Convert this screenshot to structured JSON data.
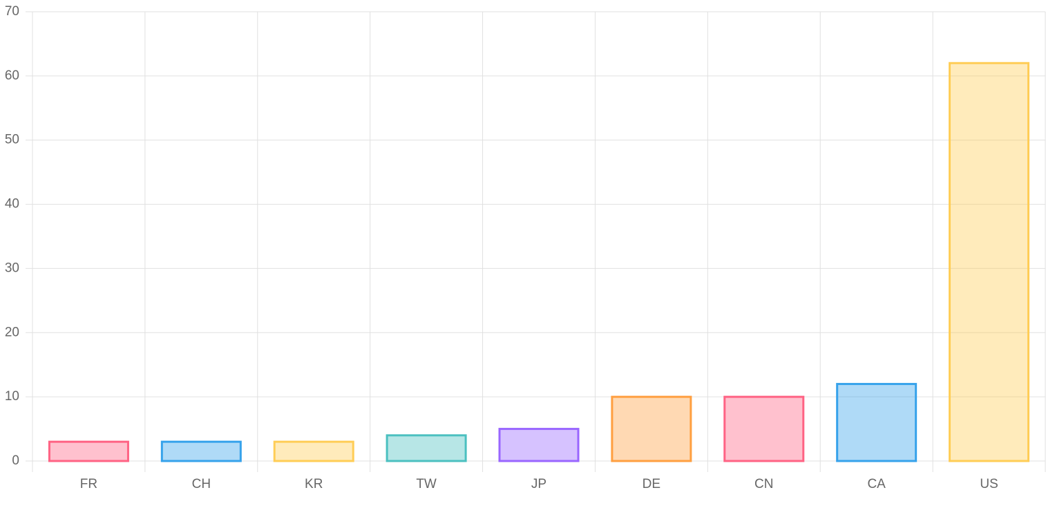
{
  "chart_data": {
    "type": "bar",
    "categories": [
      "FR",
      "CH",
      "KR",
      "TW",
      "JP",
      "DE",
      "CN",
      "CA",
      "US"
    ],
    "values": [
      3,
      3,
      3,
      4,
      5,
      10,
      10,
      12,
      62
    ],
    "colors": [
      "#ff6384",
      "#36a2eb",
      "#ffcd56",
      "#4bc0c0",
      "#9966ff",
      "#ff9f40",
      "#ff6384",
      "#36a2eb",
      "#ffcd56"
    ],
    "ylim": [
      0,
      70
    ],
    "yticks": [
      0,
      10,
      20,
      30,
      40,
      50,
      60,
      70
    ],
    "grid": true
  }
}
